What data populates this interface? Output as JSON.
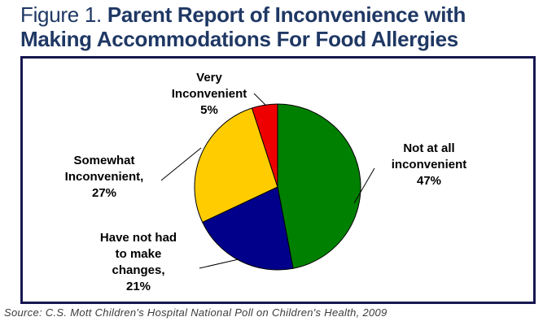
{
  "figure": {
    "label": "Figure 1.",
    "title_line1": "Parent Report of Inconvenience with",
    "title_line2": "Making Accommodations For Food Allergies",
    "title_color": "#1F3864",
    "frame_border_color": "#17174F"
  },
  "source": "Source: C.S. Mott Children's Hospital National Poll on Children's Health, 2009",
  "chart_data": {
    "type": "pie",
    "title": "Parent Report of Inconvenience with Making Accommodations For Food Allergies",
    "direction": "clockwise",
    "start_angle_deg": 0,
    "labels_position": "outside",
    "legend": "none",
    "outline_color": "#000000",
    "slices": [
      {
        "label": "Not at all inconvenient",
        "value": 47,
        "unit": "%",
        "color": "#008000",
        "label_lines": [
          "Not at all",
          "inconvenient",
          "47%"
        ]
      },
      {
        "label": "Have not had to make changes",
        "value": 21,
        "unit": "%",
        "color": "#00008B",
        "label_lines": [
          "Have not had",
          "to make",
          "changes,",
          "21%"
        ]
      },
      {
        "label": "Somewhat Inconvenient",
        "value": 27,
        "unit": "%",
        "color": "#FFCC00",
        "label_lines": [
          "Somewhat",
          "Inconvenient,",
          "27%"
        ]
      },
      {
        "label": "Very Inconvenient",
        "value": 5,
        "unit": "%",
        "color": "#EE0000",
        "label_lines": [
          "Very",
          "Inconvenient",
          "5%"
        ]
      }
    ]
  }
}
